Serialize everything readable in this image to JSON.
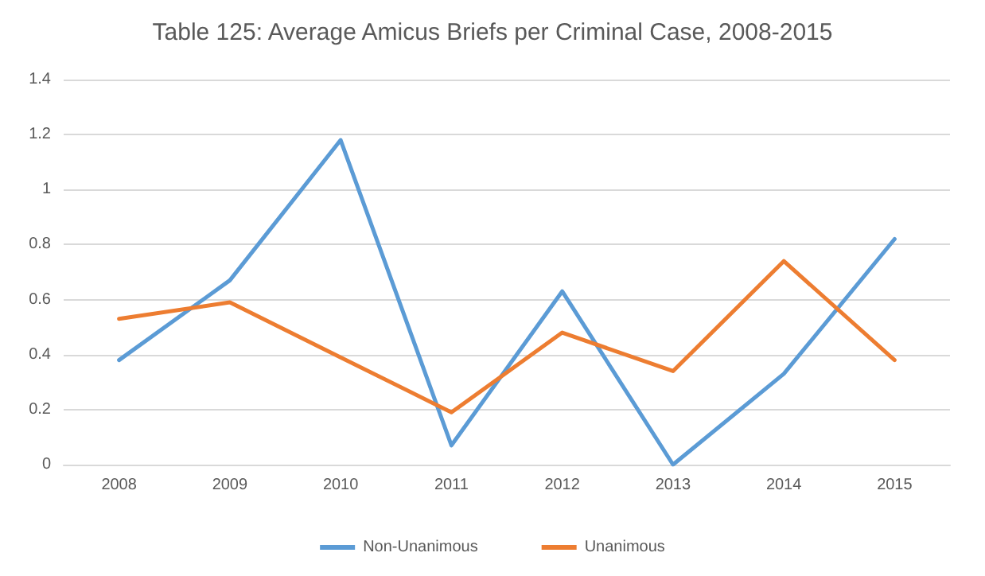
{
  "chart_data": {
    "type": "line",
    "title": "Table 125: Average Amicus Briefs per Criminal Case, 2008-2015",
    "categories": [
      "2008",
      "2009",
      "2010",
      "2011",
      "2012",
      "2013",
      "2014",
      "2015"
    ],
    "series": [
      {
        "name": "Non-Unanimous",
        "color": "#5b9bd5",
        "values": [
          0.38,
          0.67,
          1.18,
          0.07,
          0.63,
          0.0,
          0.33,
          0.82
        ]
      },
      {
        "name": "Unanimous",
        "color": "#ed7d31",
        "values": [
          0.53,
          0.59,
          0.39,
          0.19,
          0.48,
          0.34,
          0.74,
          0.38
        ]
      }
    ],
    "ylim": [
      0,
      1.4
    ],
    "yticks": [
      0,
      0.2,
      0.4,
      0.6,
      0.8,
      1,
      1.2,
      1.4
    ],
    "grid": "y",
    "legend": "bottom",
    "marker": "none",
    "line_style": "solid"
  }
}
